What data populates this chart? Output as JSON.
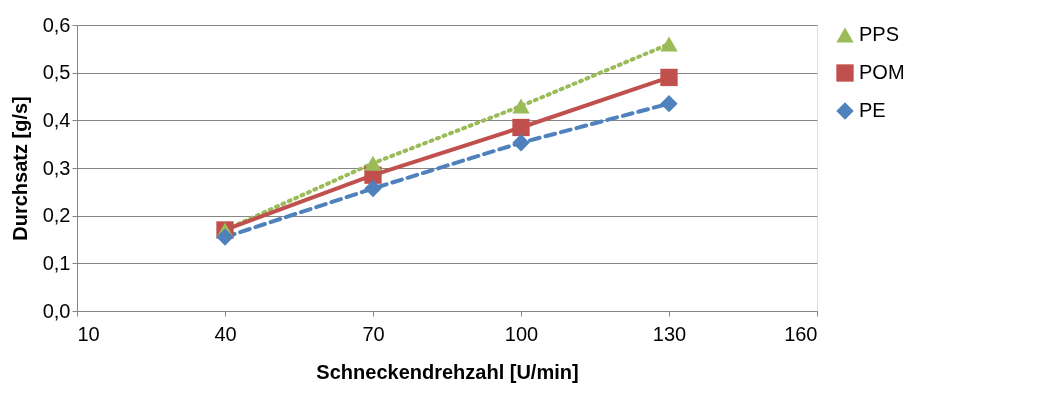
{
  "chart_data": {
    "type": "line",
    "xlabel": "Schneckendrehzahl   [U/min]",
    "ylabel": "Durchsatz   [g/s]",
    "x": [
      40,
      70,
      100,
      130
    ],
    "series": [
      {
        "name": "PPS",
        "color": "#9bbb59",
        "values": [
          0.17,
          0.31,
          0.43,
          0.56
        ],
        "marker": "triangle",
        "line_style": "dotted"
      },
      {
        "name": "POM",
        "color": "#c0504d",
        "values": [
          0.17,
          0.285,
          0.385,
          0.49
        ],
        "marker": "square",
        "line_style": "solid"
      },
      {
        "name": "PE",
        "color": "#4f81bd",
        "values": [
          0.155,
          0.257,
          0.353,
          0.435
        ],
        "marker": "diamond",
        "line_style": "dashed"
      }
    ],
    "xlim": [
      10,
      160
    ],
    "xticks": [
      10,
      40,
      70,
      100,
      130,
      160
    ],
    "ylim": [
      0,
      0.6
    ],
    "yticks": [
      {
        "value": 0,
        "label": "0,0"
      },
      {
        "value": 0.1,
        "label": "0,1"
      },
      {
        "value": 0.2,
        "label": "0,2"
      },
      {
        "value": 0.3,
        "label": "0,3"
      },
      {
        "value": 0.4,
        "label": "0,4"
      },
      {
        "value": 0.5,
        "label": "0,5"
      },
      {
        "value": 0.6,
        "label": "0,6"
      }
    ],
    "grid": "y",
    "legend": "right"
  }
}
